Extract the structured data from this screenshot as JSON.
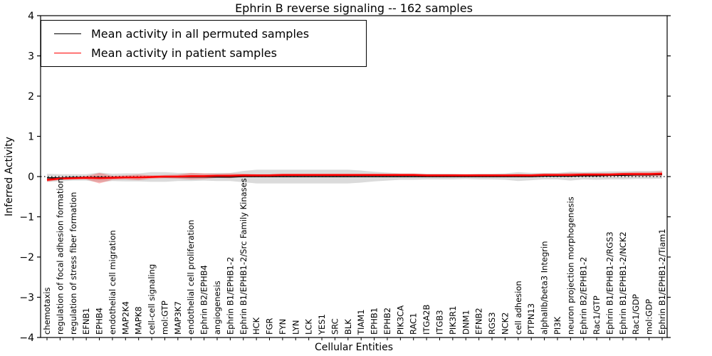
{
  "chart_data": {
    "type": "line",
    "title": "Ephrin B reverse signaling -- 162 samples",
    "xlabel": "Cellular Entities",
    "ylabel": "Inferred Activity",
    "ylim": [
      -4,
      4
    ],
    "yticks": [
      -4,
      -3,
      -2,
      -1,
      0,
      1,
      2,
      3,
      4
    ],
    "grid": false,
    "legend_position": "upper left",
    "zero_reference_line": true,
    "categories": [
      "chemotaxis",
      "regulation of focal adhesion formation",
      "regulation of stress fiber formation",
      "EFNB1",
      "EPHB4",
      "endothelial cell migration",
      "MAP2K4",
      "MAPK8",
      "cell-cell signaling",
      "mol:GTP",
      "MAP3K7",
      "endothelial cell proliferation",
      "Ephrin B2/EPHB4",
      "angiogenesis",
      "Ephrin B1/EPHB1-2",
      "Ephrin B1/EPHB1-2/Src Family Kinases",
      "HCK",
      "FGR",
      "FYN",
      "LYN",
      "LCK",
      "YES1",
      "SRC",
      "BLK",
      "TIAM1",
      "EPHB1",
      "EPHB2",
      "PIK3CA",
      "RAC1",
      "ITGA2B",
      "ITGB3",
      "PIK3R1",
      "DNM1",
      "EFNB2",
      "RGS3",
      "NCK2",
      "cell adhesion",
      "PTPN13",
      "alphaIIb/beta3 Integrin",
      "PI3K",
      "neuron projection morphogenesis",
      "Ephrin B2/EPHB1-2",
      "Rac1/GTP",
      "Ephrin B1/EPHB1-2/RGS3",
      "Ephrin B1/EPHB1-2/NCK2",
      "Rac1/GDP",
      "mol:GDP",
      "Ephrin B1/EPHB1-2/Tiam1"
    ],
    "series": [
      {
        "name": "Mean activity in all permuted samples",
        "color": "#000000",
        "values": [
          -0.03,
          -0.03,
          -0.02,
          -0.02,
          -0.02,
          -0.02,
          -0.02,
          -0.02,
          -0.01,
          -0.01,
          -0.01,
          -0.01,
          -0.01,
          -0.01,
          -0.01,
          0,
          0,
          0,
          0,
          0,
          0,
          0,
          0,
          0,
          0,
          0,
          0,
          0,
          0,
          0,
          0,
          0,
          0,
          0,
          0,
          0,
          0,
          0,
          0.01,
          0.01,
          0.01,
          0.02,
          0.02,
          0.03,
          0.03,
          0.04,
          0.04,
          0.05
        ],
        "band_halfwidth": [
          0.1,
          0.09,
          0.08,
          0.08,
          0.12,
          0.09,
          0.1,
          0.1,
          0.12,
          0.12,
          0.1,
          0.1,
          0.09,
          0.1,
          0.1,
          0.14,
          0.17,
          0.17,
          0.17,
          0.17,
          0.17,
          0.17,
          0.17,
          0.17,
          0.15,
          0.12,
          0.1,
          0.08,
          0.08,
          0.07,
          0.07,
          0.07,
          0.06,
          0.07,
          0.07,
          0.08,
          0.11,
          0.09,
          0.08,
          0.08,
          0.11,
          0.09,
          0.1,
          0.1,
          0.1,
          0.1,
          0.1,
          0.1
        ],
        "band_color": "rgba(110,110,110,0.25)"
      },
      {
        "name": "Mean activity in patient samples",
        "color": "#ff0000",
        "values": [
          -0.08,
          -0.05,
          -0.04,
          -0.03,
          -0.04,
          -0.03,
          -0.02,
          -0.02,
          -0.01,
          0,
          0,
          0.01,
          0.01,
          0.02,
          0.02,
          0.03,
          0.03,
          0.03,
          0.04,
          0.04,
          0.04,
          0.04,
          0.04,
          0.04,
          0.04,
          0.04,
          0.04,
          0.04,
          0.04,
          0.03,
          0.03,
          0.03,
          0.03,
          0.03,
          0.03,
          0.03,
          0.03,
          0.03,
          0.04,
          0.04,
          0.04,
          0.05,
          0.05,
          0.05,
          0.06,
          0.06,
          0.06,
          0.07
        ],
        "band_halfwidth": [
          0.05,
          0.03,
          0.03,
          0.04,
          0.13,
          0.05,
          0.05,
          0.07,
          0.04,
          0.04,
          0.05,
          0.08,
          0.07,
          0.05,
          0.06,
          0.04,
          0.03,
          0.03,
          0.03,
          0.03,
          0.03,
          0.03,
          0.03,
          0.03,
          0.03,
          0.03,
          0.03,
          0.03,
          0.03,
          0.03,
          0.03,
          0.03,
          0.03,
          0.03,
          0.03,
          0.03,
          0.04,
          0.03,
          0.04,
          0.04,
          0.05,
          0.04,
          0.04,
          0.04,
          0.04,
          0.05,
          0.05,
          0.06
        ],
        "band_color": "rgba(255,0,0,0.26)"
      }
    ],
    "legend": [
      {
        "label": "Mean activity in all permuted samples",
        "color": "#000000"
      },
      {
        "label": "Mean activity in patient samples",
        "color": "#ff0000"
      }
    ]
  }
}
